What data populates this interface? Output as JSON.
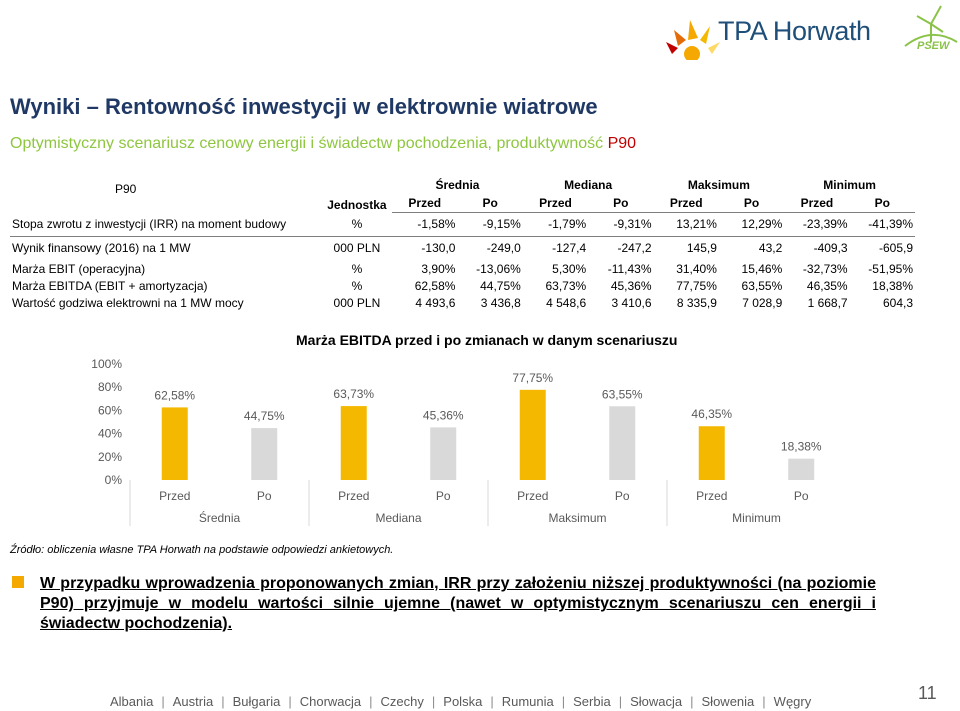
{
  "brand": {
    "logo_text": "TPA Horwath",
    "partner_logo_text": "PSEW",
    "brand_color": "#1f4e79",
    "accent_color": "#f5a800"
  },
  "title": "Wyniki – Rentowność inwestycji w elektrownie wiatrowe",
  "subtitle": {
    "text": "Optymistyczny scenariusz cenowy energii i świadectw pochodzenia, produktywność ",
    "highlight": "P90"
  },
  "table": {
    "corner_label": "P90",
    "unit_header": "Jednostka",
    "groups": [
      "Średnia",
      "Mediana",
      "Maksimum",
      "Minimum"
    ],
    "subheaders": [
      "Przed",
      "Po",
      "Przed",
      "Po",
      "Przed",
      "Po",
      "Przed",
      "Po"
    ],
    "rows": [
      {
        "label": "Stopa zwrotu z inwestycji (IRR) na moment budowy",
        "unit": "%",
        "values": [
          "-1,58%",
          "-9,15%",
          "-1,79%",
          "-9,31%",
          "13,21%",
          "12,29%",
          "-23,39%",
          "-41,39%"
        ]
      },
      {
        "label": "Wynik finansowy (2016) na 1 MW",
        "unit": "000 PLN",
        "values": [
          "-130,0",
          "-249,0",
          "-127,4",
          "-247,2",
          "145,9",
          "43,2",
          "-409,3",
          "-605,9"
        ]
      },
      {
        "label": "Marża EBIT (operacyjna)",
        "unit": "%",
        "values": [
          "3,90%",
          "-13,06%",
          "5,30%",
          "-11,43%",
          "31,40%",
          "15,46%",
          "-32,73%",
          "-51,95%"
        ]
      },
      {
        "label": "Marża EBITDA (EBIT + amortyzacja)",
        "unit": "%",
        "values": [
          "62,58%",
          "44,75%",
          "63,73%",
          "45,36%",
          "77,75%",
          "63,55%",
          "46,35%",
          "18,38%"
        ]
      },
      {
        "label": "Wartość godziwa elektrowni na 1 MW mocy",
        "unit": "000 PLN",
        "values": [
          "4 493,6",
          "3 436,8",
          "4 548,6",
          "3 410,6",
          "8 335,9",
          "7 028,9",
          "1 668,7",
          "604,3"
        ]
      }
    ]
  },
  "chart_data": {
    "type": "bar",
    "title": "Marża EBITDA przed i po zmianach w danym scenariuszu",
    "groups": [
      "Średnia",
      "Mediana",
      "Maksimum",
      "Minimum"
    ],
    "categories": [
      "Przed",
      "Po",
      "Przed",
      "Po",
      "Przed",
      "Po",
      "Przed",
      "Po"
    ],
    "values": [
      62.58,
      44.75,
      63.73,
      45.36,
      77.75,
      63.55,
      46.35,
      18.38
    ],
    "labels": [
      "62,58%",
      "44,75%",
      "63,73%",
      "45,36%",
      "77,75%",
      "63,55%",
      "46,35%",
      "18,38%"
    ],
    "ylim": [
      0,
      100
    ],
    "yticks": [
      "0%",
      "20%",
      "40%",
      "60%",
      "80%",
      "100%"
    ],
    "colors": {
      "Przed": "#f5b800",
      "Po": "#d9d9d9"
    },
    "grid": false,
    "legend": "none"
  },
  "source": "Źródło: obliczenia własne TPA Horwath na podstawie odpowiedzi ankietowych.",
  "note": "W przypadku wprowadzenia proponowanych zmian, IRR przy założeniu niższej produktywności (na poziomie P90) przyjmuje w modelu wartości silnie ujemne (nawet w optymistycznym scenariuszu cen energii i świadectw pochodzenia).",
  "footer": {
    "countries": [
      "Albania",
      "Austria",
      "Bułgaria",
      "Chorwacja",
      "Czechy",
      "Polska",
      "Rumunia",
      "Serbia",
      "Słowacja",
      "Słowenia",
      "Węgry"
    ],
    "page": "11"
  }
}
